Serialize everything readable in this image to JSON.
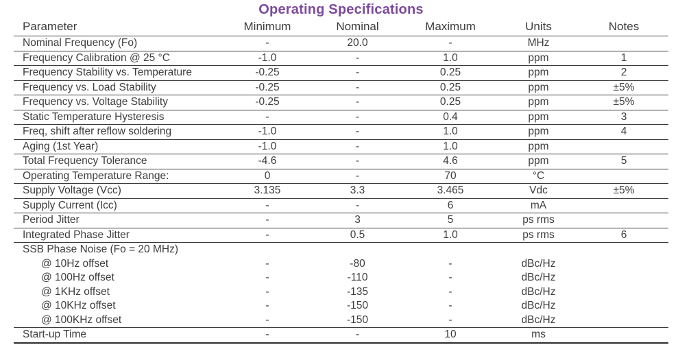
{
  "title": "Operating Specifications",
  "colors": {
    "accent_title": "#7c4a9c",
    "text": "#3d3d3d",
    "rule": "#3c3c3c"
  },
  "table": {
    "headers": [
      "Parameter",
      "Minimum",
      "Nominal",
      "Maximum",
      "Units",
      "Notes"
    ],
    "rows": [
      {
        "type": "normal",
        "param": "Nominal Frequency (Fo)",
        "min": "-",
        "nom": "20.0",
        "max": "-",
        "units": "MHz",
        "notes": ""
      },
      {
        "type": "normal",
        "param": "Frequency Calibration @ 25 °C",
        "min": "-1.0",
        "nom": "-",
        "max": "1.0",
        "units": "ppm",
        "notes": "1"
      },
      {
        "type": "normal",
        "param": "Frequency Stability vs. Temperature",
        "min": "-0.25",
        "nom": "-",
        "max": "0.25",
        "units": "ppm",
        "notes": "2"
      },
      {
        "type": "normal",
        "param": "Frequency vs. Load Stability",
        "min": "-0.25",
        "nom": "-",
        "max": "0.25",
        "units": "ppm",
        "notes": "±5%"
      },
      {
        "type": "normal",
        "param": "Frequency vs. Voltage Stability",
        "min": "-0.25",
        "nom": "-",
        "max": "0.25",
        "units": "ppm",
        "notes": "±5%"
      },
      {
        "type": "normal",
        "param": "Static Temperature Hysteresis",
        "min": "-",
        "nom": "-",
        "max": "0.4",
        "units": "ppm",
        "notes": "3"
      },
      {
        "type": "normal",
        "param": "Freq, shift after reflow soldering",
        "min": "-1.0",
        "nom": "-",
        "max": "1.0",
        "units": "ppm",
        "notes": "4"
      },
      {
        "type": "normal",
        "param": "Aging (1st Year)",
        "min": "-1.0",
        "nom": "-",
        "max": "1.0",
        "units": "ppm",
        "notes": ""
      },
      {
        "type": "normal",
        "param": "Total Frequency Tolerance",
        "min": "-4.6",
        "nom": "-",
        "max": "4.6",
        "units": "ppm",
        "notes": "5"
      },
      {
        "type": "normal",
        "param": "Operating Temperature Range:",
        "min": "0",
        "nom": "-",
        "max": "70",
        "units": "°C",
        "notes": ""
      },
      {
        "type": "normal",
        "param": "Supply Voltage (Vcc)",
        "min": "3.135",
        "nom": "3.3",
        "max": "3.465",
        "units": "Vdc",
        "notes": "±5%"
      },
      {
        "type": "normal",
        "param": "Supply Current (Icc)",
        "min": "-",
        "nom": "-",
        "max": "6",
        "units": "mA",
        "notes": ""
      },
      {
        "type": "normal",
        "param": "Period Jitter",
        "min": "-",
        "nom": "3",
        "max": "5",
        "units": "ps rms",
        "notes": ""
      },
      {
        "type": "normal",
        "param": "Integrated Phase Jitter",
        "min": "-",
        "nom": "0.5",
        "max": "1.0",
        "units": "ps rms",
        "notes": "6"
      },
      {
        "type": "section",
        "param": "SSB Phase Noise (Fo = 20 MHz)",
        "min": "",
        "nom": "",
        "max": "",
        "units": "",
        "notes": ""
      },
      {
        "type": "sub",
        "param": "@ 10Hz offset",
        "min": "-",
        "nom": "-80",
        "max": "-",
        "units": "dBc/Hz",
        "notes": ""
      },
      {
        "type": "sub",
        "param": "@ 100Hz offset",
        "min": "-",
        "nom": "-110",
        "max": "-",
        "units": "dBc/Hz",
        "notes": ""
      },
      {
        "type": "sub",
        "param": "@ 1KHz offset",
        "min": "-",
        "nom": "-135",
        "max": "-",
        "units": "dBc/Hz",
        "notes": ""
      },
      {
        "type": "sub",
        "param": "@ 10KHz offset",
        "min": "-",
        "nom": "-150",
        "max": "-",
        "units": "dBc/Hz",
        "notes": ""
      },
      {
        "type": "subend",
        "param": "@ 100KHz offset",
        "min": "-",
        "nom": "-150",
        "max": "-",
        "units": "dBc/Hz",
        "notes": ""
      },
      {
        "type": "last",
        "param": "Start-up Time",
        "min": "-",
        "nom": "-",
        "max": "10",
        "units": "ms",
        "notes": ""
      }
    ]
  }
}
